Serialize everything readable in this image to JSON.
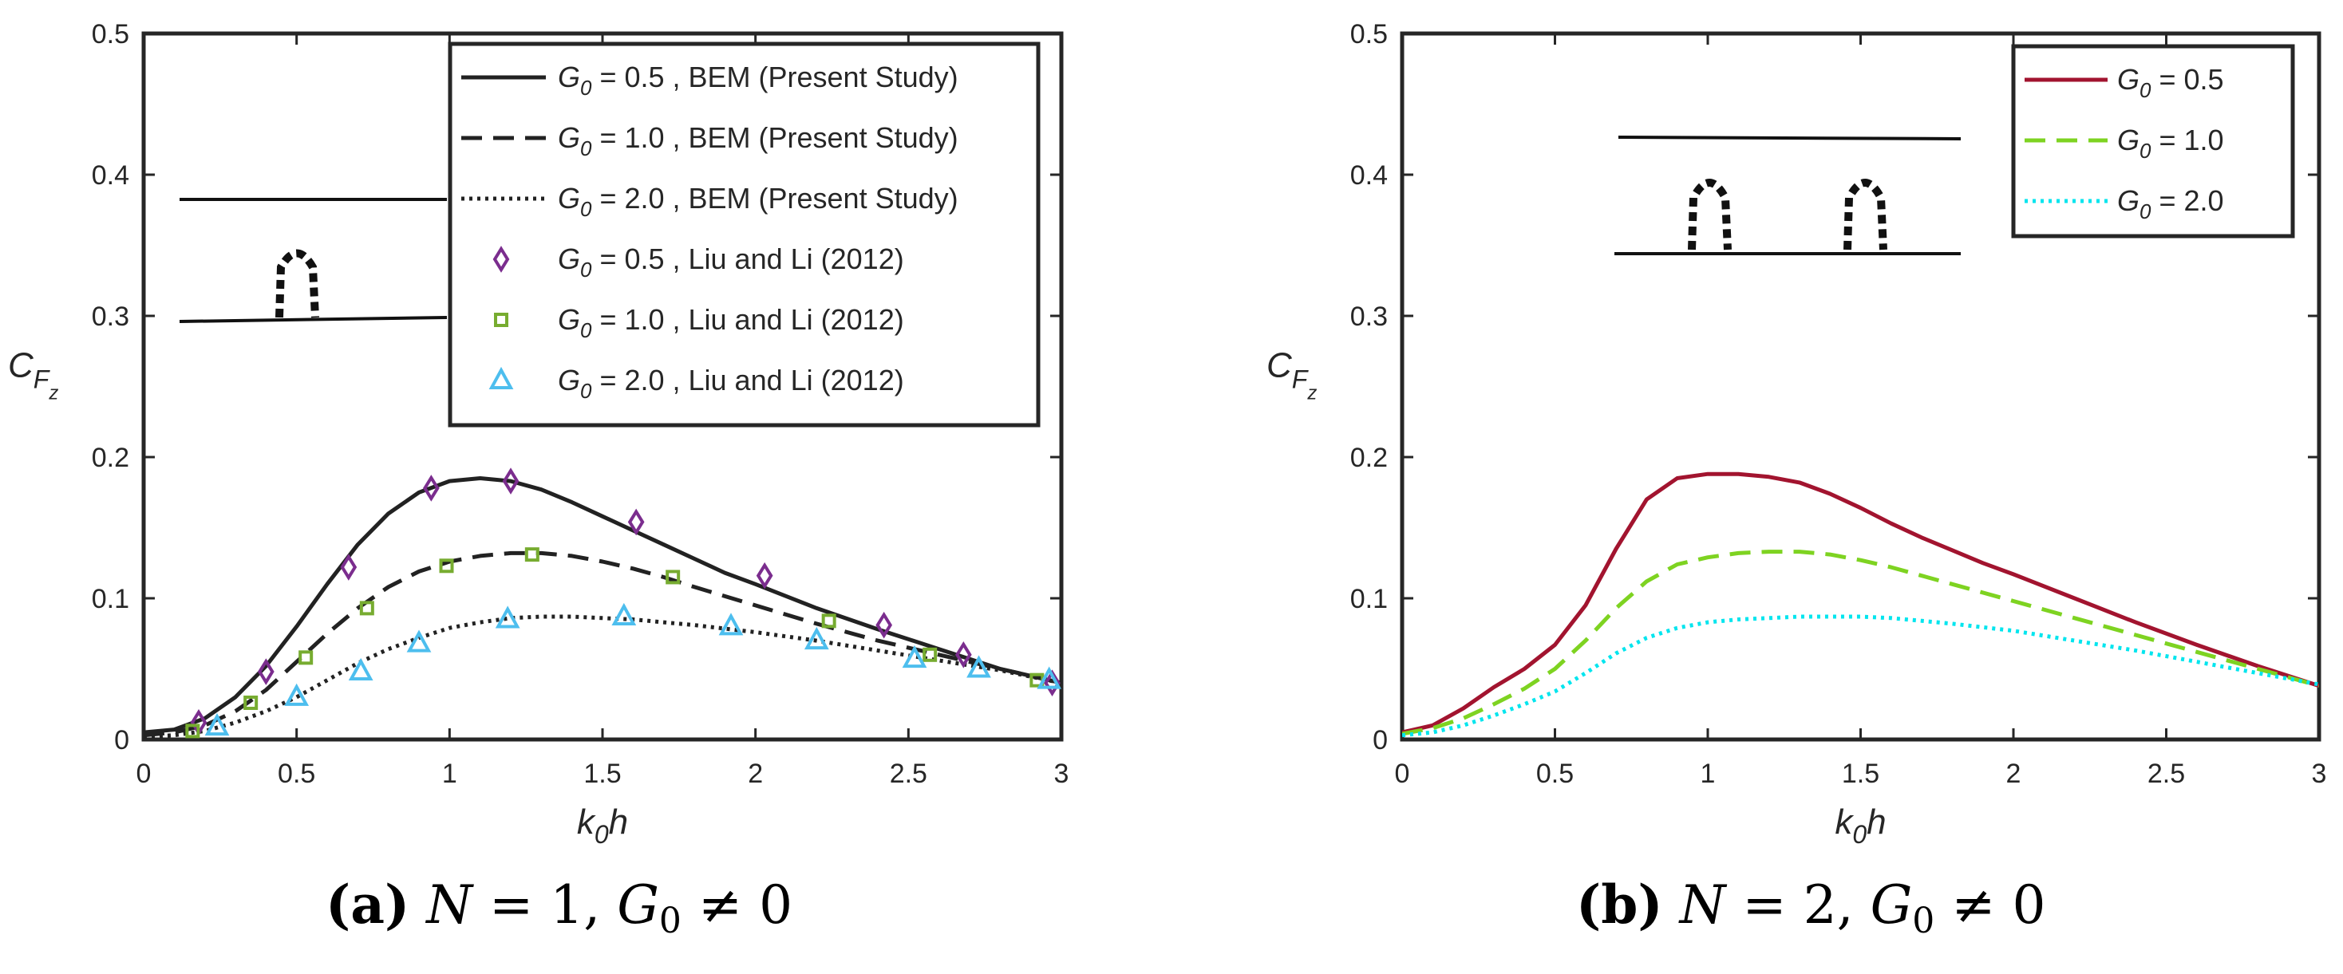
{
  "chart_data": [
    {
      "type": "line",
      "panel": "a",
      "xlabel": "k0h",
      "ylabel": "CFz",
      "xlim": [
        0,
        3
      ],
      "ylim": [
        0,
        0.5
      ],
      "xticks": [
        "0",
        "0.5",
        "1",
        "1.5",
        "2",
        "2.5",
        "3"
      ],
      "yticks": [
        "0",
        "0.1",
        "0.2",
        "0.3",
        "0.4",
        "0.5"
      ],
      "legend_position": "top-right",
      "series": [
        {
          "name": "G0 = 0.5 , BEM (Present Study)",
          "style": "solid",
          "color": "#222222",
          "x": [
            0,
            0.1,
            0.2,
            0.3,
            0.4,
            0.5,
            0.6,
            0.7,
            0.8,
            0.9,
            1.0,
            1.1,
            1.2,
            1.3,
            1.4,
            1.5,
            1.6,
            1.7,
            1.8,
            1.9,
            2.0,
            2.2,
            2.4,
            2.6,
            2.8,
            3.0
          ],
          "y": [
            0.005,
            0.007,
            0.015,
            0.03,
            0.052,
            0.08,
            0.11,
            0.138,
            0.16,
            0.175,
            0.183,
            0.185,
            0.183,
            0.177,
            0.168,
            0.158,
            0.148,
            0.138,
            0.128,
            0.118,
            0.11,
            0.093,
            0.078,
            0.064,
            0.05,
            0.04
          ]
        },
        {
          "name": "G0 = 1.0 , BEM (Present Study)",
          "style": "dashed",
          "color": "#222222",
          "x": [
            0,
            0.1,
            0.2,
            0.3,
            0.4,
            0.5,
            0.6,
            0.7,
            0.8,
            0.9,
            1.0,
            1.1,
            1.2,
            1.3,
            1.4,
            1.5,
            1.6,
            1.7,
            1.8,
            2.0,
            2.2,
            2.4,
            2.6,
            2.8,
            3.0
          ],
          "y": [
            0.003,
            0.005,
            0.01,
            0.02,
            0.035,
            0.055,
            0.075,
            0.093,
            0.108,
            0.119,
            0.126,
            0.13,
            0.132,
            0.132,
            0.13,
            0.126,
            0.121,
            0.115,
            0.108,
            0.095,
            0.082,
            0.07,
            0.06,
            0.05,
            0.04
          ]
        },
        {
          "name": "G0 = 2.0 , BEM (Present Study)",
          "style": "dotted",
          "color": "#222222",
          "x": [
            0,
            0.1,
            0.2,
            0.3,
            0.4,
            0.5,
            0.6,
            0.7,
            0.8,
            0.9,
            1.0,
            1.1,
            1.2,
            1.3,
            1.4,
            1.5,
            1.6,
            1.7,
            1.8,
            2.0,
            2.2,
            2.4,
            2.6,
            2.8,
            3.0
          ],
          "y": [
            0.002,
            0.003,
            0.006,
            0.012,
            0.02,
            0.03,
            0.042,
            0.054,
            0.064,
            0.072,
            0.079,
            0.083,
            0.086,
            0.087,
            0.087,
            0.086,
            0.085,
            0.083,
            0.081,
            0.076,
            0.07,
            0.063,
            0.056,
            0.049,
            0.04
          ]
        },
        {
          "name": "G0 = 0.5 , Liu and Li  (2012)",
          "marker": "diamond",
          "color": "#7b2d8e",
          "x": [
            0.18,
            0.4,
            0.67,
            0.94,
            1.2,
            1.61,
            2.03,
            2.42,
            2.68,
            2.97
          ],
          "y": [
            0.012,
            0.048,
            0.122,
            0.178,
            0.183,
            0.154,
            0.116,
            0.081,
            0.06,
            0.04
          ]
        },
        {
          "name": "G0 = 1.0 , Liu and Li  (2012)",
          "marker": "square",
          "color": "#77ac30",
          "x": [
            0.16,
            0.35,
            0.53,
            0.73,
            0.99,
            1.27,
            1.73,
            2.24,
            2.57,
            2.92
          ],
          "y": [
            0.006,
            0.026,
            0.058,
            0.093,
            0.123,
            0.131,
            0.115,
            0.084,
            0.06,
            0.042
          ]
        },
        {
          "name": "G0 = 2.0 , Liu and Li  (2012)",
          "marker": "triangle",
          "color": "#4dbeee",
          "x": [
            0.24,
            0.5,
            0.71,
            0.9,
            1.19,
            1.57,
            1.92,
            2.2,
            2.52,
            2.73,
            2.96
          ],
          "y": [
            0.009,
            0.03,
            0.048,
            0.068,
            0.085,
            0.087,
            0.08,
            0.07,
            0.057,
            0.05,
            0.042
          ]
        }
      ]
    },
    {
      "type": "line",
      "panel": "b",
      "xlabel": "k0h",
      "ylabel": "CFz",
      "xlim": [
        0,
        3
      ],
      "ylim": [
        0,
        0.5
      ],
      "xticks": [
        "0",
        "0.5",
        "1",
        "1.5",
        "2",
        "2.5",
        "3"
      ],
      "yticks": [
        "0",
        "0.1",
        "0.2",
        "0.3",
        "0.4",
        "0.5"
      ],
      "legend_position": "top-right",
      "series": [
        {
          "name": "G0 = 0.5",
          "style": "solid",
          "color": "#a2142f",
          "x": [
            0,
            0.1,
            0.2,
            0.3,
            0.4,
            0.5,
            0.6,
            0.7,
            0.8,
            0.9,
            1.0,
            1.1,
            1.2,
            1.3,
            1.4,
            1.5,
            1.6,
            1.7,
            1.8,
            1.9,
            2.0,
            2.2,
            2.4,
            2.6,
            2.8,
            3.0
          ],
          "y": [
            0.005,
            0.01,
            0.022,
            0.037,
            0.05,
            0.067,
            0.095,
            0.135,
            0.17,
            0.185,
            0.188,
            0.188,
            0.186,
            0.182,
            0.174,
            0.164,
            0.153,
            0.143,
            0.134,
            0.125,
            0.117,
            0.1,
            0.083,
            0.067,
            0.052,
            0.038
          ]
        },
        {
          "name": "G0 = 1.0",
          "style": "dashed",
          "color": "#7ed321",
          "x": [
            0,
            0.1,
            0.2,
            0.3,
            0.4,
            0.5,
            0.6,
            0.7,
            0.8,
            0.9,
            1.0,
            1.1,
            1.2,
            1.3,
            1.4,
            1.5,
            1.6,
            1.7,
            1.8,
            2.0,
            2.2,
            2.4,
            2.6,
            2.8,
            3.0
          ],
          "y": [
            0.004,
            0.008,
            0.015,
            0.025,
            0.036,
            0.05,
            0.07,
            0.093,
            0.112,
            0.124,
            0.129,
            0.132,
            0.133,
            0.133,
            0.131,
            0.127,
            0.122,
            0.116,
            0.11,
            0.098,
            0.086,
            0.074,
            0.062,
            0.05,
            0.038
          ]
        },
        {
          "name": "G0 = 2.0",
          "style": "dotted",
          "color": "#00e5ee",
          "x": [
            0,
            0.1,
            0.2,
            0.3,
            0.4,
            0.5,
            0.6,
            0.7,
            0.8,
            0.9,
            1.0,
            1.1,
            1.2,
            1.3,
            1.4,
            1.5,
            1.6,
            1.7,
            1.8,
            2.0,
            2.2,
            2.4,
            2.6,
            2.8,
            3.0
          ],
          "y": [
            0.003,
            0.005,
            0.01,
            0.017,
            0.025,
            0.034,
            0.047,
            0.061,
            0.072,
            0.079,
            0.083,
            0.085,
            0.086,
            0.087,
            0.087,
            0.087,
            0.086,
            0.084,
            0.082,
            0.077,
            0.07,
            0.063,
            0.055,
            0.047,
            0.039
          ]
        }
      ]
    }
  ],
  "captions": {
    "a": {
      "label": "(a)",
      "lhs": "N",
      "eq": " = 1, ",
      "g": "G",
      "sub": "0",
      "rel": " ≠ 0"
    },
    "b": {
      "label": "(b)",
      "lhs": "N",
      "eq": " = 2, ",
      "g": "G",
      "sub": "0",
      "rel": " ≠ 0"
    }
  }
}
